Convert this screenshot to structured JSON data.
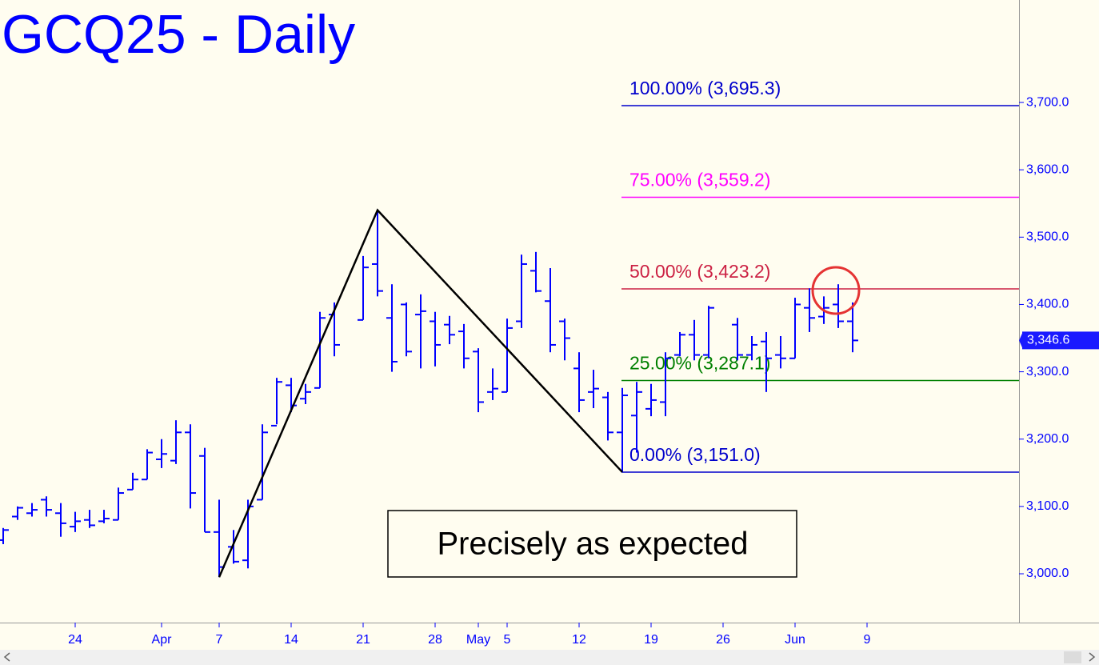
{
  "chart_data": {
    "type": "ohlc",
    "title": "GCQ25 - Daily",
    "color": "#0000ff",
    "categories": [
      null,
      null,
      null,
      null,
      null,
      "24",
      null,
      null,
      null,
      null,
      null,
      "Apr",
      null,
      null,
      null,
      "7",
      null,
      null,
      null,
      null,
      "14",
      null,
      null,
      null,
      null,
      "21",
      null,
      null,
      null,
      null,
      "28",
      null,
      null,
      "May",
      null,
      "5",
      null,
      null,
      null,
      null,
      "12",
      null,
      null,
      null,
      null,
      "19",
      null,
      null,
      null,
      null,
      "26",
      null,
      null,
      null,
      null,
      "Jun",
      null,
      null,
      null,
      null,
      "9"
    ],
    "open": [
      3050,
      3085,
      3090,
      3110,
      3090,
      3070,
      3080,
      3078,
      3080,
      3125,
      3140,
      3170,
      3168,
      3210,
      3175,
      3062,
      3040,
      3020,
      3110,
      3220,
      3280,
      3260,
      3276,
      3385,
      null,
      3377,
      3460,
      3380,
      3400,
      3385,
      3375,
      3370,
      3360,
      3330,
      3270,
      3270,
      3375,
      3450,
      3405,
      3375,
      3305,
      3270,
      3262,
      3210,
      3235,
      3245,
      3255,
      3325,
      3355,
      3325,
      null,
      3370,
      3325,
      3345,
      3325,
      3320,
      3395,
      3382,
      3400,
      3375,
      null
    ],
    "high": [
      3068,
      3100,
      3105,
      3115,
      3105,
      3092,
      3095,
      3095,
      3128,
      3150,
      3185,
      3200,
      3228,
      3222,
      3187,
      3110,
      3065,
      3110,
      3222,
      3291,
      3291,
      3282,
      3389,
      3403,
      null,
      3472,
      3540,
      3430,
      3403,
      3415,
      3389,
      3383,
      3371,
      3335,
      3305,
      3379,
      3474,
      3478,
      3454,
      3379,
      3329,
      3303,
      3270,
      3276,
      3285,
      3282,
      3329,
      3359,
      3377,
      3398,
      null,
      3380,
      3353,
      3359,
      3353,
      3410,
      3424,
      3412,
      3430,
      3403,
      null
    ],
    "low": [
      3044,
      3080,
      3085,
      3085,
      3055,
      3062,
      3068,
      3075,
      3080,
      3125,
      3140,
      3157,
      3163,
      3097,
      3062,
      2995,
      3015,
      3008,
      3110,
      3222,
      3240,
      3252,
      3276,
      3323,
      null,
      3377,
      3412,
      3300,
      3323,
      3305,
      3308,
      3341,
      3305,
      3240,
      3258,
      3270,
      3365,
      3418,
      3329,
      3317,
      3240,
      3246,
      3198,
      3151,
      3180,
      3234,
      3234,
      3323,
      3317,
      3320,
      null,
      3317,
      3317,
      3270,
      3305,
      3320,
      3359,
      3371,
      3365,
      3329,
      null
    ],
    "close": [
      3065,
      3098,
      3095,
      3095,
      3075,
      3078,
      3072,
      3082,
      3120,
      3140,
      3180,
      3178,
      3210,
      3120,
      3062,
      3010,
      3018,
      3100,
      3210,
      3285,
      3250,
      3270,
      3380,
      3340,
      null,
      3455,
      3420,
      3315,
      3330,
      3390,
      3340,
      3355,
      3320,
      3255,
      3275,
      3365,
      3460,
      3420,
      3340,
      3350,
      3258,
      3275,
      3210,
      3265,
      3270,
      3258,
      3320,
      3355,
      3325,
      3395,
      null,
      3325,
      3340,
      3320,
      3320,
      3400,
      3380,
      3395,
      3375,
      3346.6,
      null
    ],
    "ylim": [
      2927.5,
      3852.2
    ],
    "yticks": [
      {
        "value": 3000,
        "label": "3,000.0"
      },
      {
        "value": 3100,
        "label": "3,100.0"
      },
      {
        "value": 3200,
        "label": "3,200.0"
      },
      {
        "value": 3300,
        "label": "3,300.0"
      },
      {
        "value": 3400,
        "label": "3,400.0"
      },
      {
        "value": 3500,
        "label": "3,500.0"
      },
      {
        "value": 3600,
        "label": "3,600.0"
      },
      {
        "value": 3700,
        "label": "3,700.0"
      }
    ],
    "levels": [
      {
        "label": "100.00% (3,695.3)",
        "value": 3695.3,
        "color": "#0000cc"
      },
      {
        "label": "75.00% (3,559.2)",
        "value": 3559.2,
        "color": "#ff00ff"
      },
      {
        "label": "50.00% (3,423.2)",
        "value": 3423.2,
        "color": "#cc2244"
      },
      {
        "label": "25.00% (3,287.1)",
        "value": 3287.1,
        "color": "#008000"
      },
      {
        "label": "0.00% (3,151.0)",
        "value": 3151.0,
        "color": "#0000cc"
      }
    ],
    "last": {
      "value": 3346.6,
      "label": "3,346.6"
    },
    "annotation": "Precisely as expected"
  }
}
